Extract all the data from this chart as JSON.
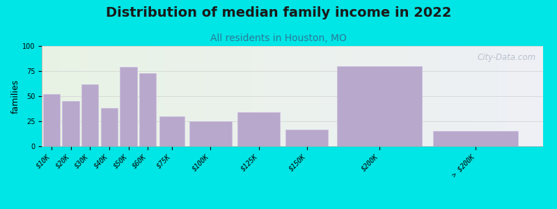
{
  "title": "Distribution of median family income in 2022",
  "subtitle": "All residents in Houston, MO",
  "ylabel": "families",
  "categories": [
    "$10K",
    "$20K",
    "$30K",
    "$40K",
    "$50K",
    "$60K",
    "$75K",
    "$100K",
    "$125K",
    "$150K",
    "$200K",
    "> $200K"
  ],
  "values": [
    52,
    45,
    62,
    38,
    79,
    73,
    30,
    25,
    34,
    17,
    80,
    15
  ],
  "bar_widths": [
    10,
    10,
    10,
    10,
    10,
    10,
    15,
    25,
    25,
    25,
    50,
    50
  ],
  "bar_lefts": [
    0,
    10,
    20,
    30,
    40,
    50,
    60,
    75,
    100,
    125,
    150,
    200
  ],
  "bar_color": "#b8a8cc",
  "bar_edgecolor": "#cdbfe0",
  "xlim": [
    0,
    260
  ],
  "ylim": [
    0,
    100
  ],
  "yticks": [
    0,
    25,
    50,
    75,
    100
  ],
  "xtick_positions": [
    5,
    15,
    25,
    35,
    45,
    55,
    67.5,
    87.5,
    112.5,
    137.5,
    175,
    225
  ],
  "xtick_labels": [
    "$10K",
    "$20K",
    "$30K",
    "$40K",
    "$50K",
    "$60K",
    "$75K",
    "$100K",
    "$125K",
    "$150K",
    "$200K",
    "> $200K"
  ],
  "background_outer": "#00e5e5",
  "bg_left_color": "#e8f2e4",
  "bg_right_color": "#eef0f5",
  "watermark": "City-Data.com",
  "title_fontsize": 14,
  "subtitle_fontsize": 10,
  "ylabel_fontsize": 9,
  "tick_fontsize": 7,
  "grid_color": "#d0d0d0",
  "spine_color": "#aaaaaa"
}
